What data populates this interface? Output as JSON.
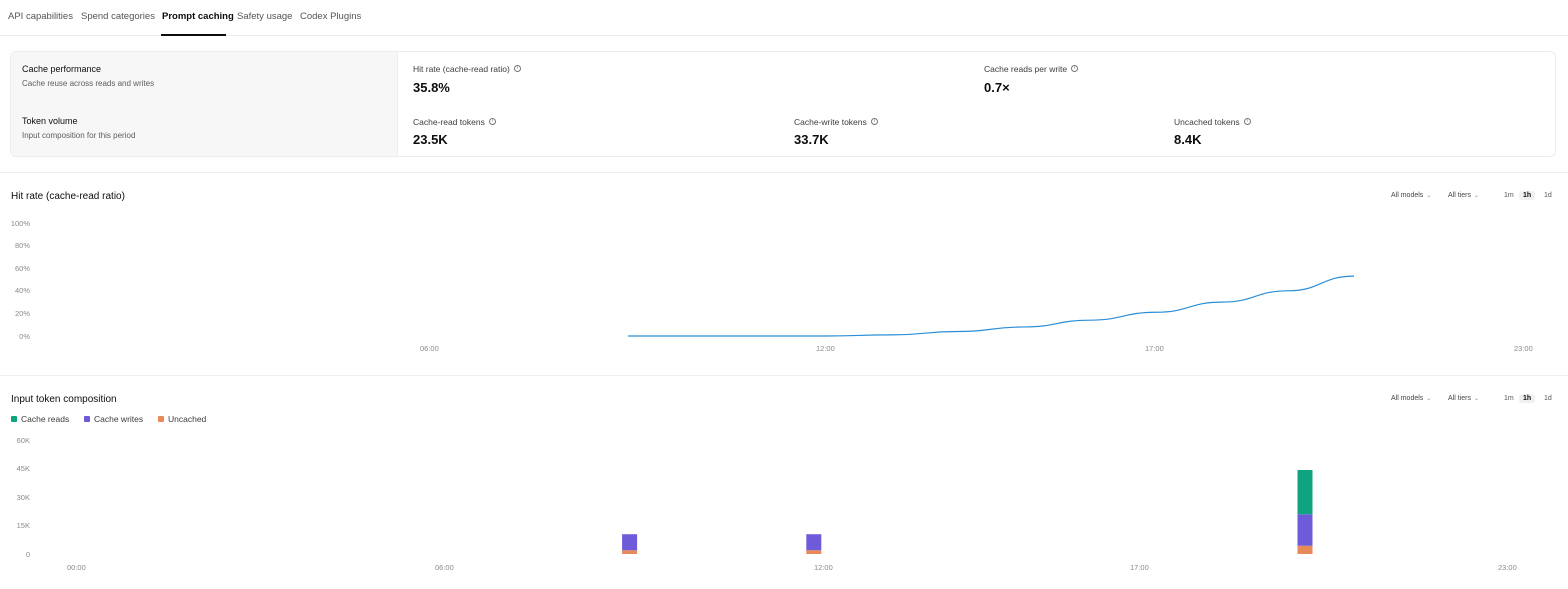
{
  "tabs": [
    {
      "label": "API capabilities",
      "active": false
    },
    {
      "label": "Spend categories",
      "active": false
    },
    {
      "label": "Prompt caching",
      "active": true
    },
    {
      "label": "Safety usage",
      "active": false
    },
    {
      "label": "Codex Plugins",
      "active": false
    }
  ],
  "summary": {
    "cache_performance": {
      "title": "Cache performance",
      "subtitle": "Cache reuse across reads and writes",
      "metrics": [
        {
          "label": "Hit rate (cache-read ratio)",
          "value": "35.8%"
        },
        {
          "label": "Cache reads per write",
          "value": "0.7×"
        }
      ]
    },
    "token_volume": {
      "title": "Token volume",
      "subtitle": "Input composition for this period",
      "metrics": [
        {
          "label": "Cache-read tokens",
          "value": "23.5K"
        },
        {
          "label": "Cache-write tokens",
          "value": "33.7K"
        },
        {
          "label": "Uncached tokens",
          "value": "8.4K"
        }
      ]
    }
  },
  "controls": {
    "models": "All models",
    "tiers": "All tiers",
    "ranges": [
      {
        "label": "1m",
        "active": false
      },
      {
        "label": "1h",
        "active": true
      },
      {
        "label": "1d",
        "active": false
      }
    ]
  },
  "colors": {
    "line": "#2a8fd6",
    "cache_reads": "#10a37f",
    "cache_writes": "#6e5bd9",
    "uncached": "#e8895a"
  },
  "chart_data": [
    {
      "type": "line",
      "title": "Hit rate (cache-read ratio)",
      "y_ticks": [
        "100%",
        "80%",
        "60%",
        "40%",
        "20%",
        "0%"
      ],
      "ylim": [
        0,
        100
      ],
      "x_ticks": [
        "06:00",
        "12:00",
        "17:00",
        "23:00"
      ],
      "grid": false,
      "series": [
        {
          "x": [
            "09:00",
            "10:00",
            "11:00",
            "12:00",
            "13:00",
            "14:00",
            "15:00",
            "16:00",
            "17:00",
            "18:00",
            "19:00",
            "20:00"
          ],
          "y": [
            0,
            0,
            0,
            0,
            1,
            4,
            8,
            14,
            21,
            30,
            40,
            53
          ]
        }
      ]
    },
    {
      "type": "bar",
      "stacked": true,
      "title": "Input token composition",
      "legend": [
        "Cache reads",
        "Cache writes",
        "Uncached"
      ],
      "legend_position": "top-left",
      "y_ticks": [
        "60K",
        "45K",
        "30K",
        "15K",
        "0"
      ],
      "ylim": [
        0,
        60000
      ],
      "x_ticks": [
        "00:00",
        "06:00",
        "12:00",
        "17:00",
        "23:00"
      ],
      "categories": [
        "09:00",
        "12:00",
        "20:00"
      ],
      "series": [
        {
          "name": "Cache reads",
          "values": [
            0,
            0,
            23500
          ]
        },
        {
          "name": "Cache writes",
          "values": [
            8500,
            8500,
            16700
          ]
        },
        {
          "name": "Uncached",
          "values": [
            2000,
            2000,
            4400
          ]
        }
      ]
    }
  ]
}
